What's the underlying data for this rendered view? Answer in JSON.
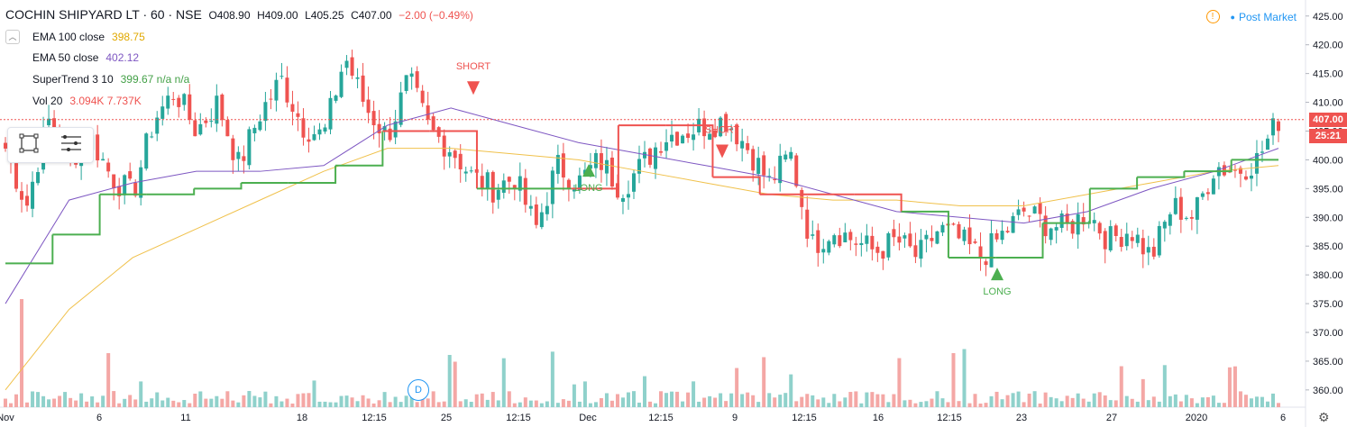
{
  "header": {
    "symbol": "COCHIN SHIPYARD LT · 60 · NSE",
    "open": "O408.90",
    "high": "H409.00",
    "low": "L405.25",
    "close": "C407.00",
    "change": "−2.00 (−0.49%)"
  },
  "indicators": [
    {
      "name": "EMA 100 close",
      "value": "398.75",
      "color": "#e8b93e"
    },
    {
      "name": "EMA 50 close",
      "value": "402.12",
      "color": "#7e57c2"
    },
    {
      "name": "SuperTrend 3 10",
      "value": "399.67 n/a n/a",
      "color": "#43a047"
    },
    {
      "name": "Vol 20",
      "value": "3.094K 7.737K",
      "color": "#ef5350"
    }
  ],
  "post_market_label": "Post Market",
  "dividend_badge": "D",
  "price_labels": {
    "last": "407.00",
    "countdown": "25:21"
  },
  "colors": {
    "up": "#26a69a",
    "down": "#ef5350",
    "vol_up": "#8fd1cb",
    "vol_down": "#f4a7a5",
    "st_long": "#4caf50",
    "st_short": "#ef5350",
    "ema100": "#f0c14b",
    "ema50": "#7e57c2"
  },
  "chart_data": {
    "type": "candlestick",
    "y_axis": {
      "min": 357,
      "max": 427,
      "ticks": [
        "425.00",
        "420.00",
        "415.00",
        "410.00",
        "405.00",
        "400.00",
        "395.00",
        "390.00",
        "385.00",
        "380.00",
        "375.00",
        "370.00",
        "365.00",
        "360.00"
      ]
    },
    "x_axis": {
      "ticks": [
        "Nov",
        "6",
        "11",
        "18",
        "12:15",
        "25",
        "12:15",
        "Dec",
        "12:15",
        "9",
        "12:15",
        "16",
        "12:15",
        "23",
        "27",
        "2020",
        "6"
      ]
    },
    "candles": {
      "count": 236,
      "close_path": [
        402,
        392,
        407,
        400,
        404,
        397,
        394,
        407,
        412,
        405,
        410,
        399,
        408,
        414,
        406,
        404,
        418,
        409,
        404,
        414,
        405,
        402,
        397,
        395,
        397,
        388,
        399,
        396,
        400,
        395,
        399,
        404,
        405,
        406,
        407,
        402,
        396,
        401,
        385,
        388,
        386,
        384,
        386,
        383,
        388,
        386,
        383,
        387,
        391,
        389,
        388,
        391,
        386,
        388,
        383,
        392,
        390,
        399,
        398,
        400,
        407
      ]
    },
    "volume": {
      "max_label": "7.737K"
    },
    "annotations": [
      {
        "label": "SHORT",
        "x_date": "26 Nov",
        "price": 416
      },
      {
        "label": "LONG",
        "x_date": "29 Nov",
        "price": 398
      },
      {
        "label": "SHORT",
        "x_date": "6 Dec",
        "price": 405
      },
      {
        "label": "LONG",
        "x_date": "20 Dec",
        "price": 380
      }
    ],
    "supertrend_levels": [
      382,
      387,
      394,
      394,
      395,
      396,
      396,
      399,
      405,
      405,
      395,
      395,
      395,
      406,
      406,
      397,
      394,
      394,
      394,
      391,
      383,
      383,
      389,
      395,
      397,
      398,
      400,
      400
    ],
    "ema100_levels": [
      360,
      374,
      383,
      388,
      393,
      398,
      402,
      402,
      401,
      400,
      398,
      396,
      394,
      393,
      393,
      392,
      392,
      394,
      396,
      398,
      399
    ],
    "ema50_levels": [
      375,
      393,
      396,
      398,
      398,
      399,
      406,
      409,
      406,
      403,
      401,
      399,
      397,
      394,
      391,
      390,
      389,
      391,
      395,
      398,
      402
    ]
  }
}
